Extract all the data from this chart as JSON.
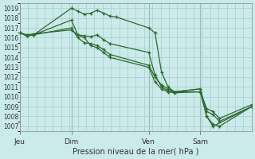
{
  "background_color": "#cbeaea",
  "grid_color": "#a8cccc",
  "line_color": "#2d6a2d",
  "xlabel": "Pression niveau de la mer( hPa )",
  "ylim": [
    1006.5,
    1019.5
  ],
  "yticks": [
    1007,
    1008,
    1009,
    1010,
    1011,
    1012,
    1013,
    1014,
    1015,
    1016,
    1017,
    1018,
    1019
  ],
  "day_labels": [
    "Jeu",
    "Dim",
    "Ven",
    "Sam"
  ],
  "day_positions": [
    0.0,
    0.222,
    0.556,
    0.778
  ],
  "vline_color": "#888888",
  "series": [
    {
      "x": [
        0.0,
        0.03,
        0.06,
        0.222,
        0.25,
        0.278,
        0.306,
        0.333,
        0.361,
        0.389,
        0.417,
        0.556,
        0.583,
        0.611,
        0.639,
        0.667,
        0.778,
        0.806,
        0.833,
        1.0
      ],
      "y": [
        1016.5,
        1016.2,
        1016.3,
        1019.0,
        1018.7,
        1018.4,
        1018.5,
        1018.8,
        1018.5,
        1018.2,
        1018.1,
        1017.0,
        1016.5,
        1012.5,
        1011.0,
        1010.5,
        1010.5,
        1008.0,
        1007.0,
        1009.0
      ]
    },
    {
      "x": [
        0.0,
        0.03,
        0.06,
        0.222,
        0.25,
        0.278,
        0.306,
        0.333,
        0.361,
        0.389,
        0.556,
        0.583,
        0.611,
        0.639,
        0.667,
        0.778,
        0.806,
        0.833,
        0.861,
        1.0
      ],
      "y": [
        1016.5,
        1016.2,
        1016.3,
        1017.8,
        1016.3,
        1016.2,
        1016.1,
        1016.3,
        1015.8,
        1015.4,
        1014.5,
        1012.2,
        1011.0,
        1010.6,
        1010.5,
        1010.8,
        1008.0,
        1007.2,
        1007.0,
        1009.0
      ]
    },
    {
      "x": [
        0.0,
        0.03,
        0.06,
        0.222,
        0.25,
        0.278,
        0.306,
        0.333,
        0.361,
        0.389,
        0.556,
        0.583,
        0.611,
        0.639,
        0.667,
        0.778,
        0.806,
        0.833,
        0.861,
        1.0
      ],
      "y": [
        1016.5,
        1016.2,
        1016.3,
        1017.0,
        1016.0,
        1015.5,
        1015.4,
        1015.2,
        1014.8,
        1014.3,
        1013.2,
        1012.0,
        1011.2,
        1010.8,
        1010.5,
        1010.8,
        1008.5,
        1008.2,
        1007.5,
        1009.0
      ]
    },
    {
      "x": [
        0.0,
        0.03,
        0.06,
        0.222,
        0.25,
        0.278,
        0.306,
        0.333,
        0.361,
        0.389,
        0.556,
        0.583,
        0.611,
        0.639,
        0.667,
        0.778,
        0.806,
        0.833,
        0.861,
        1.0
      ],
      "y": [
        1016.5,
        1016.3,
        1016.4,
        1016.8,
        1016.3,
        1016.0,
        1015.2,
        1015.0,
        1014.5,
        1014.0,
        1013.0,
        1011.5,
        1010.8,
        1010.5,
        1010.4,
        1010.5,
        1008.8,
        1008.5,
        1007.8,
        1009.2
      ]
    }
  ]
}
